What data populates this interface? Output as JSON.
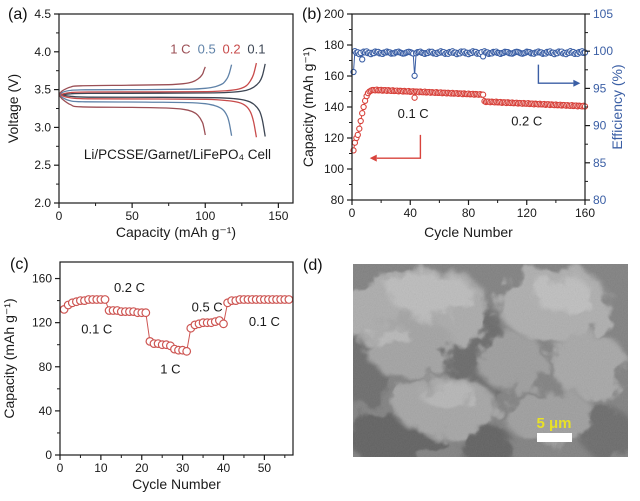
{
  "figure": {
    "background": "#ffffff",
    "panel_labels": {
      "a": "(a)",
      "b": "(b)",
      "c": "(c)",
      "d": "(d)"
    }
  },
  "chart_data": [
    {
      "panel": "a",
      "type": "line",
      "xlabel": "Capacity (mAh g⁻¹)",
      "ylabel": "Voltage (V)",
      "xlim": [
        0,
        160
      ],
      "xticks": [
        0,
        50,
        100,
        150
      ],
      "xminor": 25,
      "ylim": [
        2.0,
        4.5
      ],
      "yticks": [
        2.0,
        2.5,
        3.0,
        3.5,
        4.0,
        4.5
      ],
      "yminor": 0.25,
      "cell_label": {
        "text": "Li/PCSSE/Garnet/LiFePO₄ Cell",
        "x": 81,
        "y": 2.58
      },
      "rate_annotations": [
        {
          "text": "1 C",
          "x": 83,
          "y": 3.98,
          "color": "#9b4f55"
        },
        {
          "text": "0.5",
          "x": 101,
          "y": 3.98,
          "color": "#5f82a8"
        },
        {
          "text": "0.2",
          "x": 118,
          "y": 3.98,
          "color": "#c84b4b"
        },
        {
          "text": "0.1",
          "x": 135,
          "y": 3.98,
          "color": "#3d4654"
        }
      ],
      "series": [
        {
          "name": "0.1C-charge",
          "color": "#3d4654",
          "points": [
            [
              0,
              3.41
            ],
            [
              2,
              3.43
            ],
            [
              8,
              3.445
            ],
            [
              20,
              3.45
            ],
            [
              70,
              3.452
            ],
            [
              106,
              3.456
            ],
            [
              120,
              3.468
            ],
            [
              128,
              3.49
            ],
            [
              133,
              3.53
            ],
            [
              137,
              3.6
            ],
            [
              139,
              3.68
            ],
            [
              141,
              3.84
            ]
          ]
        },
        {
          "name": "0.1C-discharge",
          "color": "#3d4654",
          "points": [
            [
              0,
              3.46
            ],
            [
              2,
              3.43
            ],
            [
              8,
              3.412
            ],
            [
              20,
              3.4
            ],
            [
              70,
              3.398
            ],
            [
              106,
              3.393
            ],
            [
              120,
              3.38
            ],
            [
              128,
              3.355
            ],
            [
              133,
              3.31
            ],
            [
              137,
              3.22
            ],
            [
              139,
              3.1
            ],
            [
              141,
              2.88
            ]
          ]
        },
        {
          "name": "0.2C-charge",
          "color": "#c84b4b",
          "points": [
            [
              0,
              3.41
            ],
            [
              2,
              3.44
            ],
            [
              8,
              3.462
            ],
            [
              20,
              3.468
            ],
            [
              67,
              3.47
            ],
            [
              101,
              3.474
            ],
            [
              115,
              3.486
            ],
            [
              123,
              3.508
            ],
            [
              128,
              3.55
            ],
            [
              131,
              3.62
            ],
            [
              133,
              3.7
            ],
            [
              135,
              3.85
            ]
          ]
        },
        {
          "name": "0.2C-discharge",
          "color": "#c84b4b",
          "points": [
            [
              0,
              3.46
            ],
            [
              2,
              3.42
            ],
            [
              8,
              3.39
            ],
            [
              20,
              3.378
            ],
            [
              67,
              3.375
            ],
            [
              101,
              3.37
            ],
            [
              115,
              3.355
            ],
            [
              123,
              3.33
            ],
            [
              128,
              3.28
            ],
            [
              131,
              3.2
            ],
            [
              133,
              3.08
            ],
            [
              135,
              2.87
            ]
          ]
        },
        {
          "name": "0.5C-charge",
          "color": "#5f82a8",
          "points": [
            [
              0,
              3.42
            ],
            [
              2,
              3.46
            ],
            [
              8,
              3.49
            ],
            [
              18,
              3.497
            ],
            [
              59,
              3.5
            ],
            [
              88,
              3.505
            ],
            [
              100,
              3.517
            ],
            [
              107,
              3.54
            ],
            [
              112,
              3.58
            ],
            [
              115,
              3.65
            ],
            [
              116.5,
              3.72
            ],
            [
              118,
              3.83
            ]
          ]
        },
        {
          "name": "0.5C-discharge",
          "color": "#5f82a8",
          "points": [
            [
              0,
              3.45
            ],
            [
              2,
              3.4
            ],
            [
              8,
              3.35
            ],
            [
              18,
              3.338
            ],
            [
              59,
              3.334
            ],
            [
              88,
              3.328
            ],
            [
              100,
              3.313
            ],
            [
              107,
              3.285
            ],
            [
              112,
              3.235
            ],
            [
              115,
              3.15
            ],
            [
              116.5,
              3.05
            ],
            [
              118,
              2.89
            ]
          ]
        },
        {
          "name": "1C-charge",
          "color": "#9b4f55",
          "points": [
            [
              0,
              3.43
            ],
            [
              2,
              3.48
            ],
            [
              8,
              3.535
            ],
            [
              15,
              3.55
            ],
            [
              50,
              3.558
            ],
            [
              75,
              3.565
            ],
            [
              85,
              3.578
            ],
            [
              91,
              3.6
            ],
            [
              95,
              3.64
            ],
            [
              98,
              3.7
            ],
            [
              99,
              3.75
            ],
            [
              100,
              3.8
            ]
          ]
        },
        {
          "name": "1C-discharge",
          "color": "#9b4f55",
          "points": [
            [
              0,
              3.44
            ],
            [
              2,
              3.38
            ],
            [
              8,
              3.3
            ],
            [
              15,
              3.272
            ],
            [
              50,
              3.265
            ],
            [
              75,
              3.255
            ],
            [
              85,
              3.24
            ],
            [
              91,
              3.21
            ],
            [
              95,
              3.16
            ],
            [
              98,
              3.07
            ],
            [
              99,
              3.0
            ],
            [
              100,
              2.9
            ]
          ]
        }
      ]
    },
    {
      "panel": "b",
      "type": "scatter",
      "xlabel": "Cycle Number",
      "ylabel_left": "Capacity (mAh g⁻¹)",
      "ylabel_right": "Efficiency (%)",
      "xlim": [
        0,
        160
      ],
      "xticks": [
        0,
        40,
        80,
        120,
        160
      ],
      "xminor": 20,
      "ylim_left": [
        80,
        200
      ],
      "yticks_left": [
        80,
        100,
        120,
        140,
        160,
        180,
        200
      ],
      "yminor_left": 10,
      "ylim_right": [
        80,
        105
      ],
      "yticks_right": [
        80,
        85,
        90,
        95,
        100,
        105
      ],
      "yminor_right": 2.5,
      "capacity_color": "#d8433c",
      "efficiency_color": "#3b5fa5",
      "annotations": [
        {
          "text": "0.1 C",
          "x": 42,
          "y": 133
        },
        {
          "text": "0.2 C",
          "x": 120,
          "y": 128
        }
      ],
      "red_arrow": [
        [
          47,
          122
        ],
        [
          47,
          107
        ],
        [
          17,
          107
        ]
      ],
      "blue_arrow": [
        [
          128,
          98.2
        ],
        [
          128,
          95.7
        ],
        [
          152,
          95.7
        ]
      ],
      "capacity_rise": [
        [
          1,
          112
        ],
        [
          2,
          117
        ],
        [
          3,
          120
        ],
        [
          4,
          122
        ],
        [
          5,
          126
        ],
        [
          6,
          131
        ],
        [
          7,
          136
        ],
        [
          8,
          140
        ],
        [
          9,
          144
        ],
        [
          10,
          147
        ],
        [
          11,
          149
        ],
        [
          12,
          150
        ],
        [
          13,
          150.5
        ],
        [
          14,
          151
        ],
        [
          15,
          151
        ]
      ],
      "capacity_trend": [
        {
          "from": 16,
          "to": 90,
          "start": 151,
          "end": 148
        },
        {
          "from": 91,
          "to": 160,
          "start": 143.5,
          "end": 140.5
        }
      ],
      "capacity_outliers": [
        [
          43,
          146
        ]
      ],
      "efficiency_base": 99.8,
      "efficiency_dips": [
        [
          1,
          97.2
        ],
        [
          7,
          98.9
        ],
        [
          43,
          96.7
        ],
        [
          90,
          99.3
        ]
      ]
    },
    {
      "panel": "c",
      "type": "scatter",
      "xlabel": "Cycle Number",
      "ylabel": "Capacity (mAh g⁻¹)",
      "xlim": [
        0,
        57
      ],
      "xticks": [
        0,
        10,
        20,
        30,
        40,
        50
      ],
      "xminor": 5,
      "ylim": [
        0,
        175
      ],
      "yticks": [
        0,
        40,
        80,
        120,
        160
      ],
      "yminor": 20,
      "color": "#cd5552",
      "annotations": [
        {
          "text": "0.1 C",
          "x": 9,
          "y": 110
        },
        {
          "text": "0.2 C",
          "x": 17,
          "y": 148
        },
        {
          "text": "1 C",
          "x": 27,
          "y": 74
        },
        {
          "text": "0.5 C",
          "x": 36,
          "y": 130
        },
        {
          "text": "0.1 C",
          "x": 50,
          "y": 117
        }
      ],
      "points": [
        [
          1,
          132
        ],
        [
          2,
          136
        ],
        [
          3,
          138
        ],
        [
          4,
          139
        ],
        [
          5,
          140
        ],
        [
          6,
          140
        ],
        [
          7,
          141
        ],
        [
          8,
          141
        ],
        [
          9,
          141
        ],
        [
          10,
          141
        ],
        [
          11,
          141
        ],
        [
          12,
          131
        ],
        [
          13,
          131
        ],
        [
          14,
          131
        ],
        [
          15,
          130
        ],
        [
          16,
          130
        ],
        [
          17,
          130
        ],
        [
          18,
          130
        ],
        [
          19,
          129
        ],
        [
          20,
          129
        ],
        [
          21,
          129
        ],
        [
          22,
          103
        ],
        [
          23,
          101
        ],
        [
          24,
          101
        ],
        [
          25,
          100
        ],
        [
          26,
          100
        ],
        [
          27,
          99
        ],
        [
          28,
          96
        ],
        [
          29,
          95
        ],
        [
          30,
          95
        ],
        [
          31,
          94
        ],
        [
          32,
          115
        ],
        [
          33,
          118
        ],
        [
          34,
          119
        ],
        [
          35,
          120
        ],
        [
          36,
          120
        ],
        [
          37,
          120
        ],
        [
          38,
          121
        ],
        [
          39,
          122
        ],
        [
          40,
          119
        ],
        [
          41,
          138
        ],
        [
          42,
          140
        ],
        [
          43,
          140
        ],
        [
          44,
          141
        ],
        [
          45,
          141
        ],
        [
          46,
          141
        ],
        [
          47,
          141
        ],
        [
          48,
          141
        ],
        [
          49,
          141
        ],
        [
          50,
          141
        ],
        [
          51,
          141
        ],
        [
          52,
          141
        ],
        [
          53,
          141
        ],
        [
          54,
          141
        ],
        [
          55,
          141
        ],
        [
          56,
          141
        ]
      ]
    },
    {
      "panel": "d",
      "type": "image",
      "content": "SEM micrograph of agglomerated particles",
      "scalebar": {
        "text": "5 μm",
        "text_color": "#e8e127",
        "bar_color": "#ffffff"
      }
    }
  ]
}
